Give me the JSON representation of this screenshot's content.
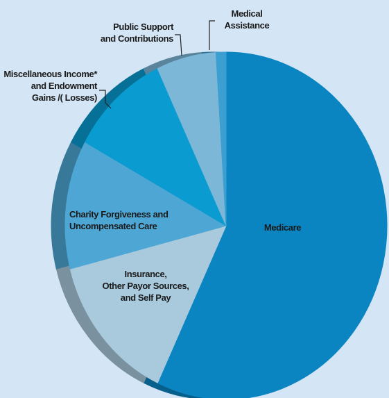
{
  "chart_data": {
    "type": "pie",
    "categories": [
      "Medicare",
      "Insurance,\nOther Payor Sources,\nand Self Pay",
      "Charity Forgiveness and\nUncompensated Care",
      "Miscellaneous Income*\nand Endowment\nGains /( Losses)",
      "Public Support\nand Contributions",
      "Medical\nAssistance"
    ],
    "values": [
      57,
      14,
      12,
      10,
      6,
      1
    ],
    "colors": [
      "#0a85c2",
      "#a9c9dd",
      "#4ea6d4",
      "#0a9bd0",
      "#7db7d8",
      "#3c9fd1"
    ]
  }
}
